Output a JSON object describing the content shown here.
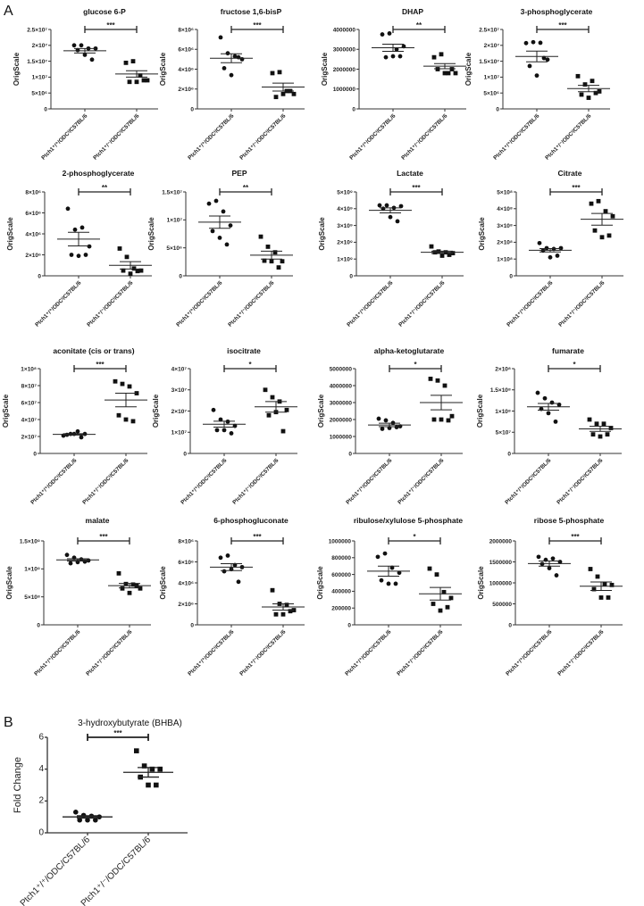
{
  "panel_labels": {
    "a": "A",
    "b": "B"
  },
  "groups_a": [
    "Ptch1⁺/⁺/ODCᵗ/C57BL/6",
    "Ptch1⁺/⁻/ODCᵗ/C57BL/6"
  ],
  "groups_b": [
    "Ptch1⁺/⁺/ODC/C57BL/6",
    "Ptch1⁺/⁻/ODC/C57BL/6"
  ],
  "chart_data": [
    {
      "type": "scatter",
      "title": "glucose 6-P",
      "ylabel": "OrigScale",
      "ylim": [
        0,
        25000000.0
      ],
      "ticks": [
        {
          "v": 0,
          "label": "0"
        },
        {
          "v": 5000000.0,
          "label": "5×10⁶"
        },
        {
          "v": 10000000.0,
          "label": "1×10⁷"
        },
        {
          "v": 15000000.0,
          "label": "1.5×10⁷"
        },
        {
          "v": 20000000.0,
          "label": "2×10⁷"
        },
        {
          "v": 25000000.0,
          "label": "2.5×10⁷"
        }
      ],
      "series": [
        {
          "values": [
            20000000.0,
            20000000.0,
            19000000.0,
            19000000.0,
            18500000.0,
            17000000.0,
            15500000.0
          ],
          "mean": 18300000.0,
          "sem": 700000.0
        },
        {
          "values": [
            14500000.0,
            15000000.0,
            10500000.0,
            9000000.0,
            8500000.0,
            8500000.0,
            9000000.0
          ],
          "mean": 11000000.0,
          "sem": 1000000.0
        }
      ],
      "significance": "***"
    },
    {
      "type": "scatter",
      "title": "fructose 1,6-bisP",
      "ylabel": "OrigScale",
      "ylim": [
        0,
        8000000.0
      ],
      "ticks": [
        {
          "v": 0,
          "label": "0"
        },
        {
          "v": 2000000.0,
          "label": "2×10⁶"
        },
        {
          "v": 4000000.0,
          "label": "4×10⁶"
        },
        {
          "v": 6000000.0,
          "label": "6×10⁶"
        },
        {
          "v": 8000000.0,
          "label": "8×10⁶"
        }
      ],
      "series": [
        {
          "values": [
            7200000.0,
            5600000.0,
            5300000.0,
            5000000.0,
            4100000.0,
            3400000.0,
            5200000.0
          ],
          "mean": 5100000.0,
          "sem": 450000.0
        },
        {
          "values": [
            3600000.0,
            3700000.0,
            1800000.0,
            1500000.0,
            1200000.0,
            1500000.0,
            1800000.0
          ],
          "mean": 2200000.0,
          "sem": 400000.0
        }
      ],
      "significance": "***"
    },
    {
      "type": "scatter",
      "title": "DHAP",
      "ylabel": "OrigScale",
      "ylim": [
        0,
        4000000
      ],
      "ticks": [
        {
          "v": 0,
          "label": "0"
        },
        {
          "v": 1000000,
          "label": "1000000"
        },
        {
          "v": 2000000,
          "label": "2000000"
        },
        {
          "v": 3000000,
          "label": "3000000"
        },
        {
          "v": 4000000,
          "label": "4000000"
        }
      ],
      "series": [
        {
          "values": [
            3750000,
            3800000,
            3000000,
            3150000,
            2600000,
            2650000,
            2650000
          ],
          "mean": 3080000,
          "sem": 180000
        },
        {
          "values": [
            2600000,
            2750000,
            1800000,
            1800000,
            2000000,
            1800000,
            2000000
          ],
          "mean": 2150000,
          "sem": 130000
        }
      ],
      "significance": "**"
    },
    {
      "type": "scatter",
      "title": "3-phosphoglycerate",
      "ylabel": "OrigScale",
      "ylim": [
        0,
        25000000.0
      ],
      "ticks": [
        {
          "v": 0,
          "label": "0"
        },
        {
          "v": 5000000.0,
          "label": "5×10⁶"
        },
        {
          "v": 10000000.0,
          "label": "1×10⁷"
        },
        {
          "v": 15000000.0,
          "label": "1.5×10⁷"
        },
        {
          "v": 20000000.0,
          "label": "2×10⁷"
        },
        {
          "v": 25000000.0,
          "label": "2.5×10⁷"
        }
      ],
      "series": [
        {
          "values": [
            20700000.0,
            21000000.0,
            20800000.0,
            15500000.0,
            13500000.0,
            10500000.0,
            16000000.0
          ],
          "mean": 16500000.0,
          "sem": 1700000.0
        },
        {
          "values": [
            10300000.0,
            7700000.0,
            8800000.0,
            5500000.0,
            4500000.0,
            3500000.0,
            5000000.0
          ],
          "mean": 6400000.0,
          "sem": 1000000.0
        }
      ],
      "significance": "***"
    },
    {
      "type": "scatter",
      "title": "2-phosphoglycerate",
      "ylabel": "OrigScale",
      "ylim": [
        0,
        8000000.0
      ],
      "ticks": [
        {
          "v": 0,
          "label": "0"
        },
        {
          "v": 2000000.0,
          "label": "2×10⁶"
        },
        {
          "v": 4000000.0,
          "label": "4×10⁶"
        },
        {
          "v": 6000000.0,
          "label": "6×10⁶"
        },
        {
          "v": 8000000.0,
          "label": "8×10⁶"
        }
      ],
      "series": [
        {
          "values": [
            6400000.0,
            4400000.0,
            4600000.0,
            2800000.0,
            2000000.0,
            1900000.0,
            2000000.0
          ],
          "mean": 3500000.0,
          "sem": 650000.0
        },
        {
          "values": [
            2600000.0,
            1800000.0,
            700000.0,
            500000.0,
            500000.0,
            200000.0,
            450000.0
          ],
          "mean": 1000000.0,
          "sem": 350000.0
        }
      ],
      "significance": "**"
    },
    {
      "type": "scatter",
      "title": "PEP",
      "ylabel": "OrigScale",
      "ylim": [
        0,
        15000000.0
      ],
      "ticks": [
        {
          "v": 0,
          "label": "0"
        },
        {
          "v": 5000000.0,
          "label": "5×10⁶"
        },
        {
          "v": 10000000.0,
          "label": "1×10⁷"
        },
        {
          "v": 15000000.0,
          "label": "1.5×10⁷"
        }
      ],
      "series": [
        {
          "values": [
            12900000.0,
            13400000.0,
            11500000.0,
            9000000.0,
            8000000.0,
            6800000.0,
            5600000.0
          ],
          "mean": 9600000.0,
          "sem": 1100000.0
        },
        {
          "values": [
            7000000.0,
            5200000.0,
            4200000.0,
            2600000.0,
            2700000.0,
            2600000.0,
            1500000.0
          ],
          "mean": 3700000.0,
          "sem": 700000.0
        }
      ],
      "significance": "**"
    },
    {
      "type": "scatter",
      "title": "Lactate",
      "ylabel": "OrigScale",
      "ylim": [
        0,
        5000000000.0
      ],
      "ticks": [
        {
          "v": 0,
          "label": "0"
        },
        {
          "v": 1000000000.0,
          "label": "1×10⁹"
        },
        {
          "v": 2000000000.0,
          "label": "2×10⁹"
        },
        {
          "v": 3000000000.0,
          "label": "3×10⁹"
        },
        {
          "v": 4000000000.0,
          "label": "4×10⁹"
        },
        {
          "v": 5000000000.0,
          "label": "5×10⁹"
        }
      ],
      "series": [
        {
          "values": [
            4200000000.0,
            4200000000.0,
            4050000000.0,
            4150000000.0,
            4000000000.0,
            3500000000.0,
            3250000000.0
          ],
          "mean": 3900000000.0,
          "sem": 150000000.0
        },
        {
          "values": [
            1750000000.0,
            1450000000.0,
            1400000000.0,
            1350000000.0,
            1400000000.0,
            1200000000.0,
            1250000000.0
          ],
          "mean": 1400000000.0,
          "sem": 70000000.0
        }
      ],
      "significance": "***"
    },
    {
      "type": "scatter",
      "title": "Citrate",
      "ylabel": "OrigScale",
      "ylim": [
        0,
        500000000.0
      ],
      "ticks": [
        {
          "v": 0,
          "label": "0"
        },
        {
          "v": 100000000.0,
          "label": "1×10⁸"
        },
        {
          "v": 200000000.0,
          "label": "2×10⁸"
        },
        {
          "v": 300000000.0,
          "label": "3×10⁸"
        },
        {
          "v": 400000000.0,
          "label": "4×10⁸"
        },
        {
          "v": 500000000.0,
          "label": "5×10⁸"
        }
      ],
      "series": [
        {
          "values": [
            195000000.0,
            165000000.0,
            160000000.0,
            165000000.0,
            150000000.0,
            110000000.0,
            120000000.0
          ],
          "mean": 152000000.0,
          "sem": 10000000.0
        },
        {
          "values": [
            430000000.0,
            445000000.0,
            385000000.0,
            355000000.0,
            270000000.0,
            230000000.0,
            240000000.0
          ],
          "mean": 337000000.0,
          "sem": 35000000.0
        }
      ],
      "significance": "***"
    },
    {
      "type": "scatter",
      "title": "aconitate (cis or trans)",
      "ylabel": "OrigScale",
      "ylim": [
        0,
        100000000.0
      ],
      "ticks": [
        {
          "v": 0,
          "label": "0"
        },
        {
          "v": 20000000.0,
          "label": "2×10⁷"
        },
        {
          "v": 40000000.0,
          "label": "4×10⁷"
        },
        {
          "v": 60000000.0,
          "label": "6×10⁷"
        },
        {
          "v": 80000000.0,
          "label": "8×10⁷"
        },
        {
          "v": 100000000.0,
          "label": "1×10⁸"
        }
      ],
      "series": [
        {
          "values": [
            21000000.0,
            23000000.0,
            26000000.0,
            23000000.0,
            22000000.0,
            23000000.0,
            19000000.0
          ],
          "mean": 22500000.0,
          "sem": 800000.0
        },
        {
          "values": [
            85000000.0,
            82000000.0,
            79000000.0,
            71000000.0,
            45000000.0,
            40000000.0,
            38000000.0
          ],
          "mean": 63000000.0,
          "sem": 8000000.0
        }
      ],
      "significance": "***"
    },
    {
      "type": "scatter",
      "title": "isocitrate",
      "ylabel": "OrigScale",
      "ylim": [
        0,
        40000000.0
      ],
      "ticks": [
        {
          "v": 0,
          "label": "0"
        },
        {
          "v": 10000000.0,
          "label": "1×10⁷"
        },
        {
          "v": 20000000.0,
          "label": "2×10⁷"
        },
        {
          "v": 30000000.0,
          "label": "3×10⁷"
        },
        {
          "v": 40000000.0,
          "label": "4×10⁷"
        }
      ],
      "series": [
        {
          "values": [
            20500000.0,
            16000000.0,
            15000000.0,
            13000000.0,
            11000000.0,
            11000000.0,
            9500000.0
          ],
          "mean": 13800000.0,
          "sem": 1400000.0
        },
        {
          "values": [
            30000000.0,
            26500000.0,
            24500000.0,
            20500000.0,
            18000000.0,
            19500000.0,
            10500000.0
          ],
          "mean": 22000000.0,
          "sem": 2500000.0
        }
      ],
      "significance": "*"
    },
    {
      "type": "scatter",
      "title": "alpha-ketoglutarate",
      "ylabel": "OrigScale",
      "ylim": [
        0,
        5000000
      ],
      "ticks": [
        {
          "v": 0,
          "label": "0"
        },
        {
          "v": 1000000,
          "label": "1000000"
        },
        {
          "v": 2000000,
          "label": "2000000"
        },
        {
          "v": 3000000,
          "label": "3000000"
        },
        {
          "v": 4000000,
          "label": "4000000"
        },
        {
          "v": 5000000,
          "label": "5000000"
        }
      ],
      "series": [
        {
          "values": [
            2050000,
            1950000,
            1800000,
            1600000,
            1450000,
            1500000,
            1550000
          ],
          "mean": 1680000,
          "sem": 100000
        },
        {
          "values": [
            4400000,
            4300000,
            4000000,
            2200000,
            2000000,
            2000000,
            1950000
          ],
          "mean": 3000000,
          "sem": 430000
        }
      ],
      "significance": "*"
    },
    {
      "type": "scatter",
      "title": "fumarate",
      "ylabel": "OrigScale",
      "ylim": [
        0,
        200000000.0
      ],
      "ticks": [
        {
          "v": 0,
          "label": "0"
        },
        {
          "v": 50000000.0,
          "label": "5×10⁷"
        },
        {
          "v": 100000000.0,
          "label": "1×10⁸"
        },
        {
          "v": 150000000.0,
          "label": "1.5×10⁸"
        },
        {
          "v": 200000000.0,
          "label": "2×10⁸"
        }
      ],
      "series": [
        {
          "values": [
            143000000.0,
            130000000.0,
            120000000.0,
            115000000.0,
            105000000.0,
            95000000.0,
            75000000.0
          ],
          "mean": 110000000.0,
          "sem": 8000000.0
        },
        {
          "values": [
            80000000.0,
            70000000.0,
            70000000.0,
            60000000.0,
            45000000.0,
            40000000.0,
            45000000.0
          ],
          "mean": 58000000.0,
          "sem": 6000000.0
        }
      ],
      "significance": "*"
    },
    {
      "type": "scatter",
      "title": "malate",
      "ylabel": "OrigScale",
      "ylim": [
        0,
        1500000000.0
      ],
      "ticks": [
        {
          "v": 0,
          "label": "0"
        },
        {
          "v": 500000000.0,
          "label": "5×10⁸"
        },
        {
          "v": 1000000000.0,
          "label": "1×10⁹"
        },
        {
          "v": 1500000000.0,
          "label": "1.5×10⁹"
        }
      ],
      "series": [
        {
          "values": [
            1250000000.0,
            1200000000.0,
            1170000000.0,
            1150000000.0,
            1100000000.0,
            1120000000.0,
            1130000000.0
          ],
          "mean": 1160000000.0,
          "sem": 20000000.0
        },
        {
          "values": [
            920000000.0,
            730000000.0,
            720000000.0,
            650000000.0,
            650000000.0,
            570000000.0,
            700000000.0
          ],
          "mean": 700000000.0,
          "sem": 40000000.0
        }
      ],
      "significance": "***"
    },
    {
      "type": "scatter",
      "title": "6-phosphogluconate",
      "ylabel": "OrigScale",
      "ylim": [
        0,
        8000000.0
      ],
      "ticks": [
        {
          "v": 0,
          "label": "0"
        },
        {
          "v": 2000000.0,
          "label": "2×10⁶"
        },
        {
          "v": 4000000.0,
          "label": "4×10⁶"
        },
        {
          "v": 6000000.0,
          "label": "6×10⁶"
        },
        {
          "v": 8000000.0,
          "label": "8×10⁶"
        }
      ],
      "series": [
        {
          "values": [
            6400000.0,
            6600000.0,
            5700000.0,
            5500000.0,
            5100000.0,
            5300000.0,
            4100000.0
          ],
          "mean": 5500000.0,
          "sem": 330000.0
        },
        {
          "values": [
            3300000.0,
            2000000.0,
            1900000.0,
            1400000.0,
            1000000.0,
            1000000.0,
            1300000.0
          ],
          "mean": 1700000.0,
          "sem": 300000.0
        }
      ],
      "significance": "***"
    },
    {
      "type": "scatter",
      "title": "ribulose/xylulose 5-phosphate",
      "ylabel": "OrigScale",
      "ylim": [
        0,
        1000000
      ],
      "ticks": [
        {
          "v": 0,
          "label": "0"
        },
        {
          "v": 200000,
          "label": "200000"
        },
        {
          "v": 400000,
          "label": "400000"
        },
        {
          "v": 600000,
          "label": "600000"
        },
        {
          "v": 800000,
          "label": "800000"
        },
        {
          "v": 1000000,
          "label": "1000000"
        }
      ],
      "series": [
        {
          "values": [
            810000,
            850000,
            680000,
            620000,
            530000,
            490000,
            490000
          ],
          "mean": 640000,
          "sem": 60000
        },
        {
          "values": [
            670000,
            600000,
            390000,
            320000,
            250000,
            170000,
            210000
          ],
          "mean": 370000,
          "sem": 75000
        }
      ],
      "significance": "*"
    },
    {
      "type": "scatter",
      "title": "ribose 5-phosphate",
      "ylabel": "OrigScale",
      "ylim": [
        0,
        2000000
      ],
      "ticks": [
        {
          "v": 0,
          "label": "0"
        },
        {
          "v": 500000,
          "label": "500000"
        },
        {
          "v": 1000000,
          "label": "1000000"
        },
        {
          "v": 1500000,
          "label": "1500000"
        },
        {
          "v": 2000000,
          "label": "2000000"
        }
      ],
      "series": [
        {
          "values": [
            1620000,
            1550000,
            1580000,
            1500000,
            1450000,
            1350000,
            1180000
          ],
          "mean": 1460000,
          "sem": 60000
        },
        {
          "values": [
            1330000,
            1150000,
            970000,
            950000,
            850000,
            650000,
            650000
          ],
          "mean": 920000,
          "sem": 100000
        }
      ],
      "significance": "***"
    },
    {
      "type": "scatter",
      "title": "3-hydroxybutyrate (BHBA)",
      "ylabel": "Fold Change",
      "ylim": [
        0,
        6
      ],
      "ticks": [
        {
          "v": 0,
          "label": "0"
        },
        {
          "v": 2,
          "label": "2"
        },
        {
          "v": 4,
          "label": "4"
        },
        {
          "v": 6,
          "label": "6"
        }
      ],
      "series": [
        {
          "values": [
            1.3,
            1.1,
            1.05,
            1.0,
            0.8,
            0.8,
            0.8
          ],
          "mean": 1.0,
          "sem": 0.07
        },
        {
          "values": [
            5.15,
            4.2,
            4.0,
            4.0,
            3.5,
            3.0,
            3.0
          ],
          "mean": 3.8,
          "sem": 0.3
        }
      ],
      "significance": "***"
    }
  ]
}
